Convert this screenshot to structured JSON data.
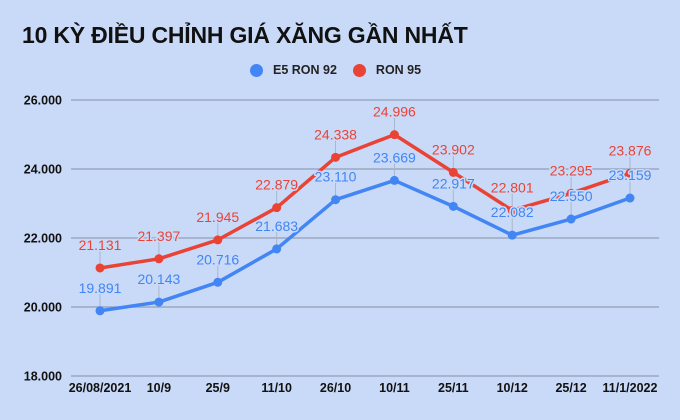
{
  "chart_data": {
    "type": "line",
    "title": "10 KỲ ĐIỀU CHỈNH GIÁ XĂNG GẦN NHẤT",
    "xlabel": "",
    "ylabel": "",
    "categories": [
      "26/08/2021",
      "10/9",
      "25/9",
      "11/10",
      "26/10",
      "10/11",
      "25/11",
      "10/12",
      "25/12",
      "11/1/2022"
    ],
    "series": [
      {
        "name": "E5 RON 92",
        "color": "#4285F4",
        "values": [
          19891,
          20143,
          20716,
          21683,
          23110,
          23669,
          22917,
          22082,
          22550,
          23159
        ],
        "labels": [
          "19.891",
          "20.143",
          "20.716",
          "21.683",
          "23.110",
          "23.669",
          "22.917",
          "22.082",
          "22.550",
          "23.159"
        ]
      },
      {
        "name": "RON 95",
        "color": "#EA4335",
        "values": [
          21131,
          21397,
          21945,
          22879,
          24338,
          24996,
          23902,
          22801,
          23295,
          23876
        ],
        "labels": [
          "21.131",
          "21.397",
          "21.945",
          "22.879",
          "24.338",
          "24.996",
          "23.902",
          "22.801",
          "23.295",
          "23.876"
        ]
      }
    ],
    "ylim": [
      18000,
      26000
    ],
    "yticks": [
      18000,
      20000,
      22000,
      24000,
      26000
    ],
    "ytick_labels": [
      "18.000",
      "20.000",
      "22.000",
      "24.000",
      "26.000"
    ],
    "grid": true,
    "legend_position": "top",
    "data_labels": true
  },
  "style": {
    "background": "#C9DAF8",
    "grid_color": "#9AA8C0",
    "leader_color": "#A9B6CC"
  }
}
